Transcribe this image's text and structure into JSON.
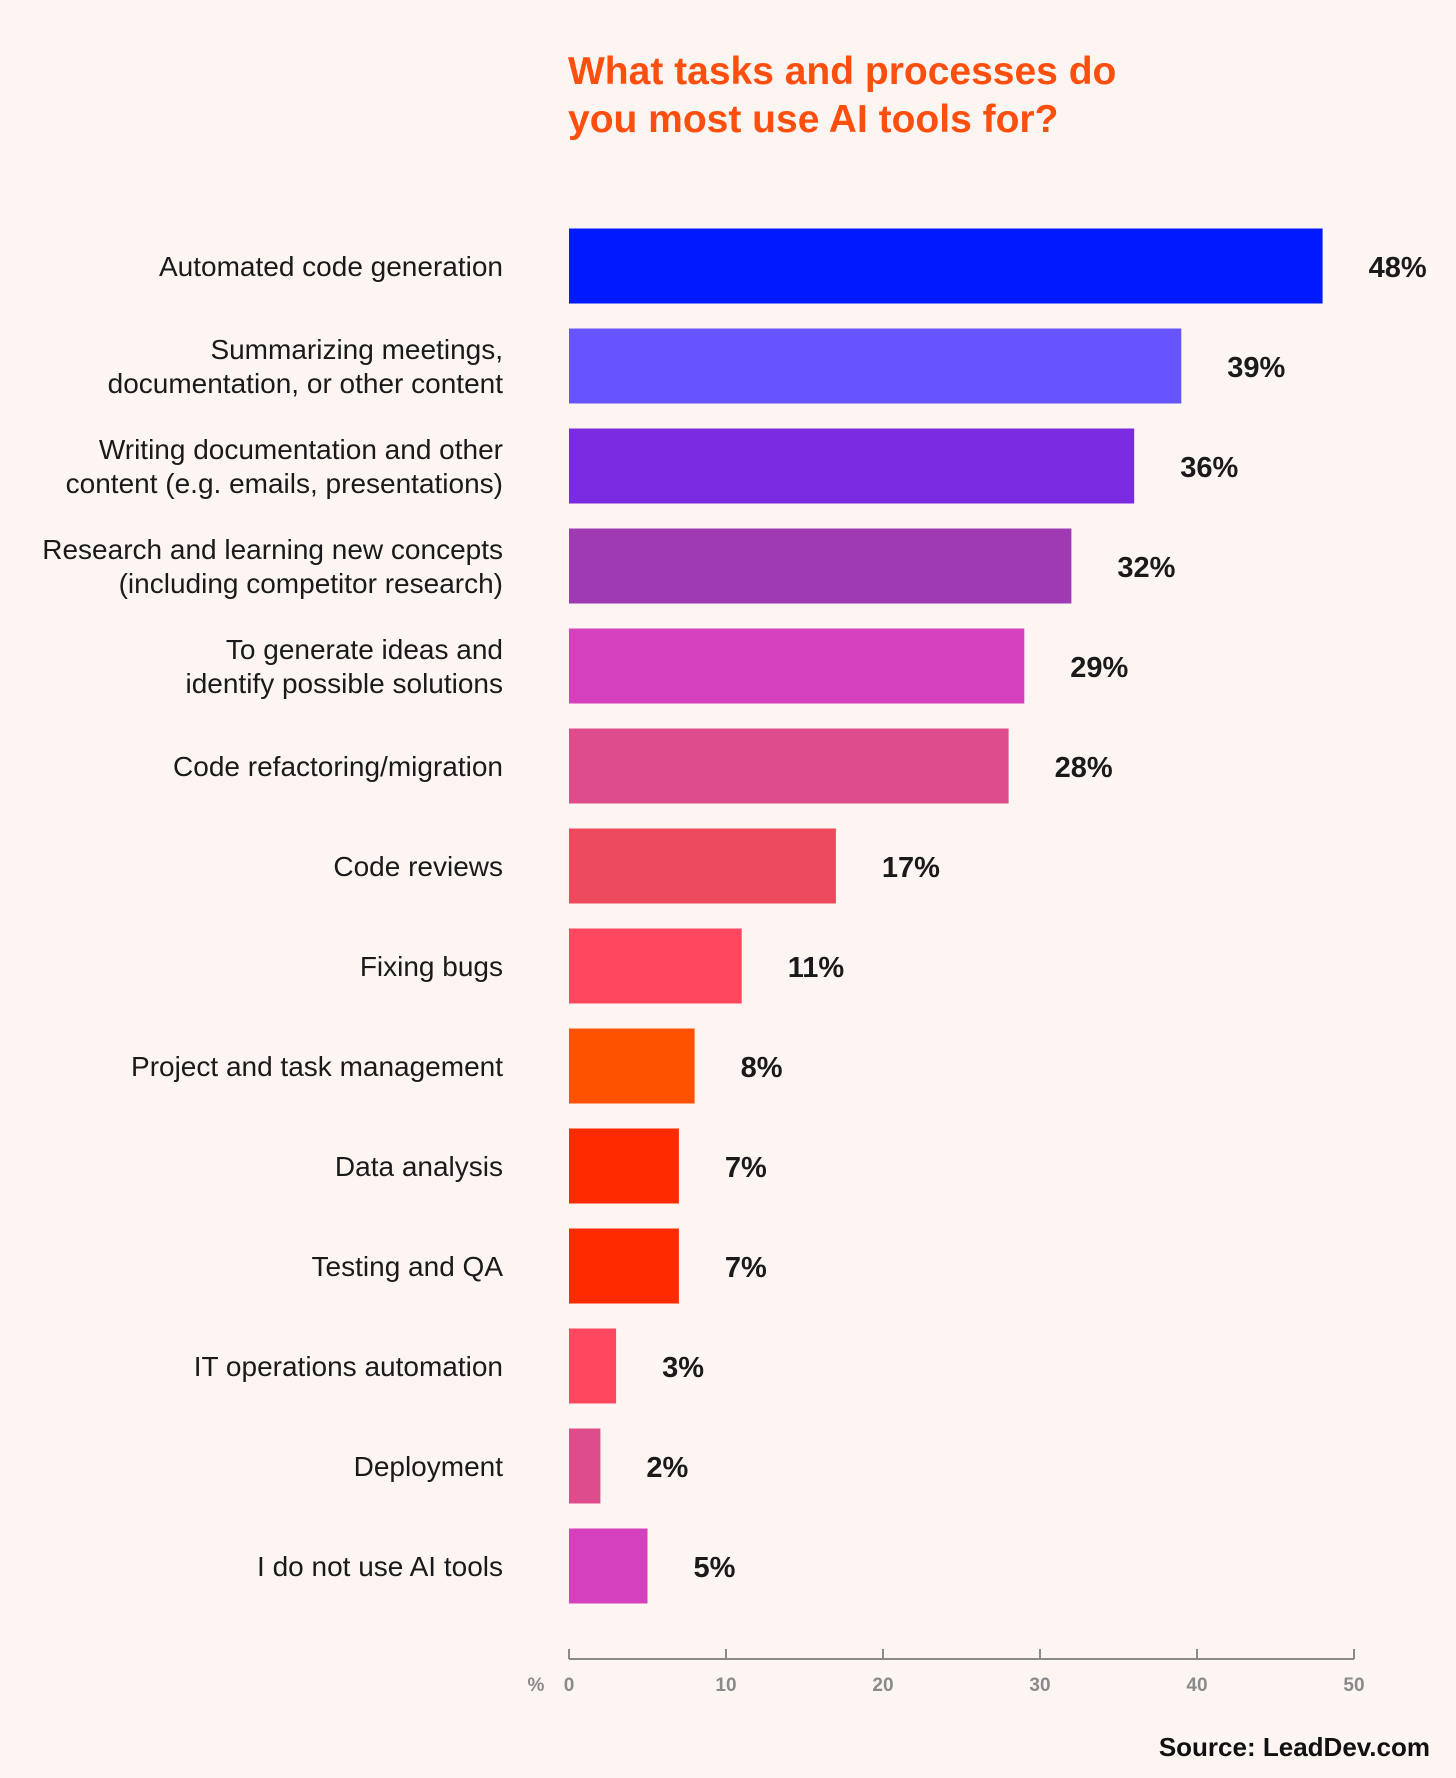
{
  "chart_data": {
    "type": "bar",
    "orientation": "horizontal",
    "title_lines": [
      "What tasks and processes do",
      "you most use AI tools for?"
    ],
    "categories": [
      [
        "Automated code generation"
      ],
      [
        "Summarizing meetings,",
        "documentation, or other content"
      ],
      [
        "Writing documentation and other",
        "content (e.g. emails, presentations)"
      ],
      [
        "Research and learning new concepts",
        "(including competitor research)"
      ],
      [
        "To generate ideas and",
        "identify possible solutions"
      ],
      [
        "Code refactoring/migration"
      ],
      [
        "Code reviews"
      ],
      [
        "Fixing bugs"
      ],
      [
        "Project and task management"
      ],
      [
        "Data analysis"
      ],
      [
        "Testing and QA"
      ],
      [
        "IT operations automation"
      ],
      [
        "Deployment"
      ],
      [
        "I do not use AI tools"
      ]
    ],
    "values": [
      48,
      39,
      36,
      32,
      29,
      28,
      17,
      11,
      8,
      7,
      7,
      3,
      2,
      5
    ],
    "value_labels": [
      "48%",
      "39%",
      "36%",
      "32%",
      "29%",
      "28%",
      "17%",
      "11%",
      "8%",
      "7%",
      "7%",
      "3%",
      "2%",
      "5%"
    ],
    "colors": [
      "#0019ff",
      "#6655ff",
      "#7a2be0",
      "#a03ab4",
      "#d541bd",
      "#de4c8c",
      "#ee4a5e",
      "#ff4860",
      "#ff5200",
      "#ff2a00",
      "#ff2a00",
      "#ff4860",
      "#de4c8c",
      "#d541bd"
    ],
    "xaxis_unit": "%",
    "xlim": [
      0,
      50
    ],
    "xticks": [
      0,
      10,
      20,
      30,
      40,
      50
    ],
    "grid": false,
    "legend": "none"
  },
  "source": "Source: LeadDev.com"
}
